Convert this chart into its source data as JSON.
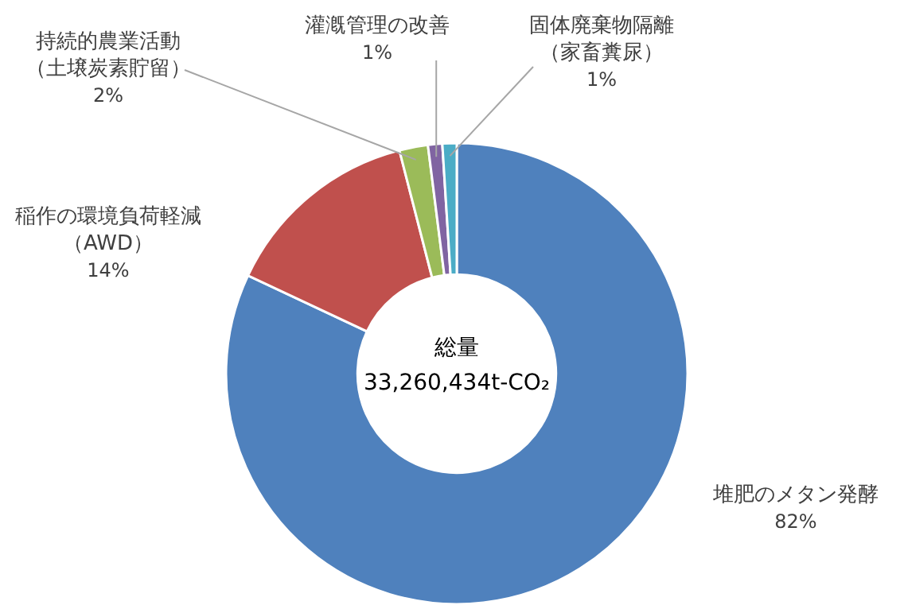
{
  "chart_data": {
    "type": "donut",
    "categories": [
      "堆肥のメタン発酵",
      "稲作の環境負荷軽減（AWD）",
      "持続的農業活動（土壌炭素貯留）",
      "灌漑管理の改善",
      "固体廃棄物隔離（家畜糞尿）"
    ],
    "values": [
      82,
      14,
      2,
      1,
      1
    ],
    "value_labels": [
      "82%",
      "14%",
      "2%",
      "1%",
      "1%"
    ],
    "colors": [
      "#4f81bd",
      "#c0504d",
      "#9bbb59",
      "#8064a2",
      "#4bacc6"
    ],
    "annotations": [
      "総量",
      "33,260,434t-CO₂"
    ]
  }
}
